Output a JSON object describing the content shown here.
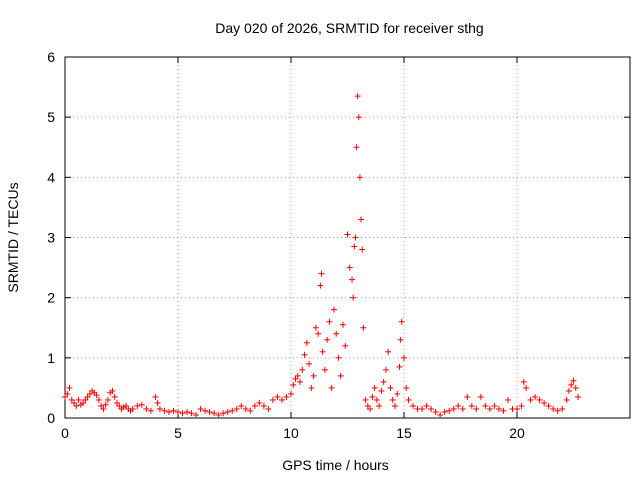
{
  "chart_data": {
    "type": "scatter",
    "title": "Day 020 of 2026, SRMTID for receiver sthg",
    "xlabel": "GPS time / hours",
    "ylabel": "SRMTID / TECUs",
    "xlim": [
      0,
      25
    ],
    "ylim": [
      0,
      6
    ],
    "xticks": [
      0,
      5,
      10,
      15,
      20
    ],
    "yticks": [
      0,
      1,
      2,
      3,
      4,
      5,
      6
    ],
    "grid": true,
    "marker": "+",
    "color": "#ff0000",
    "series": [
      {
        "name": "SRMTID",
        "points": [
          [
            0.0,
            0.35
          ],
          [
            0.1,
            0.4
          ],
          [
            0.2,
            0.5
          ],
          [
            0.3,
            0.3
          ],
          [
            0.4,
            0.25
          ],
          [
            0.5,
            0.2
          ],
          [
            0.6,
            0.3
          ],
          [
            0.7,
            0.22
          ],
          [
            0.8,
            0.25
          ],
          [
            0.9,
            0.3
          ],
          [
            1.0,
            0.35
          ],
          [
            1.1,
            0.4
          ],
          [
            1.2,
            0.45
          ],
          [
            1.3,
            0.42
          ],
          [
            1.4,
            0.38
          ],
          [
            1.5,
            0.3
          ],
          [
            1.6,
            0.2
          ],
          [
            1.7,
            0.15
          ],
          [
            1.8,
            0.22
          ],
          [
            1.9,
            0.3
          ],
          [
            2.0,
            0.42
          ],
          [
            2.1,
            0.45
          ],
          [
            2.2,
            0.35
          ],
          [
            2.3,
            0.25
          ],
          [
            2.4,
            0.2
          ],
          [
            2.5,
            0.15
          ],
          [
            2.6,
            0.18
          ],
          [
            2.7,
            0.2
          ],
          [
            2.8,
            0.15
          ],
          [
            2.9,
            0.12
          ],
          [
            3.0,
            0.15
          ],
          [
            3.2,
            0.2
          ],
          [
            3.4,
            0.22
          ],
          [
            3.6,
            0.15
          ],
          [
            3.8,
            0.12
          ],
          [
            4.0,
            0.35
          ],
          [
            4.1,
            0.25
          ],
          [
            4.2,
            0.15
          ],
          [
            4.4,
            0.12
          ],
          [
            4.6,
            0.1
          ],
          [
            4.8,
            0.12
          ],
          [
            5.0,
            0.1
          ],
          [
            5.2,
            0.08
          ],
          [
            5.4,
            0.1
          ],
          [
            5.6,
            0.08
          ],
          [
            5.8,
            0.05
          ],
          [
            6.0,
            0.15
          ],
          [
            6.2,
            0.12
          ],
          [
            6.4,
            0.1
          ],
          [
            6.6,
            0.08
          ],
          [
            6.8,
            0.05
          ],
          [
            7.0,
            0.08
          ],
          [
            7.2,
            0.1
          ],
          [
            7.4,
            0.12
          ],
          [
            7.6,
            0.15
          ],
          [
            7.8,
            0.2
          ],
          [
            8.0,
            0.15
          ],
          [
            8.2,
            0.12
          ],
          [
            8.4,
            0.2
          ],
          [
            8.6,
            0.25
          ],
          [
            8.8,
            0.2
          ],
          [
            9.0,
            0.15
          ],
          [
            9.2,
            0.3
          ],
          [
            9.4,
            0.35
          ],
          [
            9.6,
            0.3
          ],
          [
            9.8,
            0.35
          ],
          [
            10.0,
            0.4
          ],
          [
            10.1,
            0.55
          ],
          [
            10.2,
            0.65
          ],
          [
            10.3,
            0.7
          ],
          [
            10.4,
            0.6
          ],
          [
            10.5,
            0.8
          ],
          [
            10.6,
            1.05
          ],
          [
            10.7,
            1.25
          ],
          [
            10.8,
            0.9
          ],
          [
            10.9,
            0.5
          ],
          [
            11.0,
            0.7
          ],
          [
            11.1,
            1.5
          ],
          [
            11.2,
            1.4
          ],
          [
            11.3,
            2.2
          ],
          [
            11.35,
            2.4
          ],
          [
            11.4,
            1.1
          ],
          [
            11.5,
            0.8
          ],
          [
            11.6,
            1.3
          ],
          [
            11.7,
            1.6
          ],
          [
            11.8,
            0.5
          ],
          [
            11.9,
            1.8
          ],
          [
            12.0,
            1.4
          ],
          [
            12.1,
            1.0
          ],
          [
            12.2,
            0.7
          ],
          [
            12.3,
            1.55
          ],
          [
            12.4,
            1.2
          ],
          [
            12.5,
            3.05
          ],
          [
            12.6,
            2.5
          ],
          [
            12.7,
            2.3
          ],
          [
            12.75,
            2.0
          ],
          [
            12.8,
            2.85
          ],
          [
            12.85,
            3.0
          ],
          [
            12.9,
            4.5
          ],
          [
            12.95,
            5.35
          ],
          [
            13.0,
            5.0
          ],
          [
            13.05,
            4.0
          ],
          [
            13.1,
            3.3
          ],
          [
            13.15,
            2.8
          ],
          [
            13.2,
            1.5
          ],
          [
            13.3,
            0.3
          ],
          [
            13.4,
            0.2
          ],
          [
            13.5,
            0.15
          ],
          [
            13.6,
            0.35
          ],
          [
            13.7,
            0.5
          ],
          [
            13.8,
            0.3
          ],
          [
            13.9,
            0.2
          ],
          [
            14.0,
            0.45
          ],
          [
            14.1,
            0.6
          ],
          [
            14.2,
            0.8
          ],
          [
            14.3,
            1.1
          ],
          [
            14.4,
            0.5
          ],
          [
            14.5,
            0.3
          ],
          [
            14.6,
            0.2
          ],
          [
            14.7,
            0.4
          ],
          [
            14.8,
            0.85
          ],
          [
            14.85,
            1.3
          ],
          [
            14.9,
            1.6
          ],
          [
            15.0,
            1.0
          ],
          [
            15.1,
            0.5
          ],
          [
            15.2,
            0.3
          ],
          [
            15.4,
            0.2
          ],
          [
            15.6,
            0.15
          ],
          [
            15.8,
            0.15
          ],
          [
            16.0,
            0.2
          ],
          [
            16.2,
            0.15
          ],
          [
            16.4,
            0.1
          ],
          [
            16.6,
            0.05
          ],
          [
            16.8,
            0.1
          ],
          [
            17.0,
            0.12
          ],
          [
            17.2,
            0.15
          ],
          [
            17.4,
            0.2
          ],
          [
            17.6,
            0.15
          ],
          [
            17.8,
            0.35
          ],
          [
            18.0,
            0.2
          ],
          [
            18.2,
            0.15
          ],
          [
            18.4,
            0.35
          ],
          [
            18.6,
            0.2
          ],
          [
            18.8,
            0.15
          ],
          [
            19.0,
            0.2
          ],
          [
            19.2,
            0.15
          ],
          [
            19.4,
            0.12
          ],
          [
            19.6,
            0.3
          ],
          [
            19.8,
            0.15
          ],
          [
            20.0,
            0.15
          ],
          [
            20.2,
            0.2
          ],
          [
            20.3,
            0.6
          ],
          [
            20.4,
            0.5
          ],
          [
            20.6,
            0.3
          ],
          [
            20.8,
            0.35
          ],
          [
            21.0,
            0.3
          ],
          [
            21.2,
            0.25
          ],
          [
            21.4,
            0.2
          ],
          [
            21.6,
            0.15
          ],
          [
            21.8,
            0.12
          ],
          [
            22.0,
            0.15
          ],
          [
            22.2,
            0.3
          ],
          [
            22.3,
            0.45
          ],
          [
            22.4,
            0.55
          ],
          [
            22.5,
            0.62
          ],
          [
            22.6,
            0.5
          ],
          [
            22.7,
            0.35
          ]
        ]
      }
    ]
  }
}
